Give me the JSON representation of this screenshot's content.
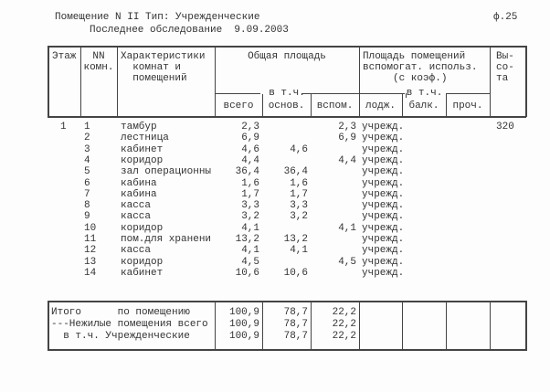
{
  "header": {
    "title": "Помещение N II Тип: Учрежденческие",
    "survey": "Последнее обследование  9.09.2003",
    "form": "ф.25"
  },
  "columns": {
    "floor": "Этаж",
    "nn": "NN\nкомн.",
    "desc": "Характеристики\n  комнат и\n  помещений",
    "total_area": "Общая площадь",
    "incl1": "в т.ч.",
    "all": "всего",
    "main": "основ.",
    "aux": "вспом.",
    "aux_area": "Площадь помещений\nвспомогат. использ.\n     (с коэф.)",
    "incl2": "в т.ч.",
    "loggia": "лодж.",
    "balcony": "балк.",
    "other": "проч.",
    "height": "Вы-\nсо-\nта"
  },
  "rows": [
    {
      "floor": "1",
      "nn": "1",
      "name": "тамбур",
      "all": "2,3",
      "main": "",
      "aux": "2,3",
      "type": "учрежд.",
      "height": "320"
    },
    {
      "nn": "2",
      "name": "лестница",
      "all": "6,9",
      "main": "",
      "aux": "6,9",
      "type": "учрежд."
    },
    {
      "nn": "3",
      "name": "кабинет",
      "all": "4,6",
      "main": "4,6",
      "aux": "",
      "type": "учрежд."
    },
    {
      "nn": "4",
      "name": "коридор",
      "all": "4,4",
      "main": "",
      "aux": "4,4",
      "type": "учрежд."
    },
    {
      "nn": "5",
      "name": "зал операционны",
      "all": "36,4",
      "main": "36,4",
      "aux": "",
      "type": "учрежд."
    },
    {
      "nn": "6",
      "name": "кабина",
      "all": "1,6",
      "main": "1,6",
      "aux": "",
      "type": "учрежд."
    },
    {
      "nn": "7",
      "name": "кабина",
      "all": "1,7",
      "main": "1,7",
      "aux": "",
      "type": "учрежд."
    },
    {
      "nn": "8",
      "name": "касса",
      "all": "3,3",
      "main": "3,3",
      "aux": "",
      "type": "учрежд."
    },
    {
      "nn": "9",
      "name": "касса",
      "all": "3,2",
      "main": "3,2",
      "aux": "",
      "type": "учрежд."
    },
    {
      "nn": "10",
      "name": "коридор",
      "all": "4,1",
      "main": "",
      "aux": "4,1",
      "type": "учрежд."
    },
    {
      "nn": "11",
      "name": "пом.для хранени",
      "all": "13,2",
      "main": "13,2",
      "aux": "",
      "type": "учрежд."
    },
    {
      "nn": "12",
      "name": "касса",
      "all": "4,1",
      "main": "4,1",
      "aux": "",
      "type": "учрежд."
    },
    {
      "nn": "13",
      "name": "коридор",
      "all": "4,5",
      "main": "",
      "aux": "4,5",
      "type": "учрежд."
    },
    {
      "nn": "14",
      "name": "кабинет",
      "all": "10,6",
      "main": "10,6",
      "aux": "",
      "type": "учрежд."
    }
  ],
  "totals": [
    {
      "label": "Итого      по помещению",
      "all": "100,9",
      "main": "78,7",
      "aux": "22,2"
    },
    {
      "label": "---Нежилые помещения всего",
      "all": "100,9",
      "main": "78,7",
      "aux": "22,2"
    },
    {
      "label": "  в т.ч. Учрежденческие",
      "all": "100,9",
      "main": "78,7",
      "aux": "22,2"
    }
  ]
}
